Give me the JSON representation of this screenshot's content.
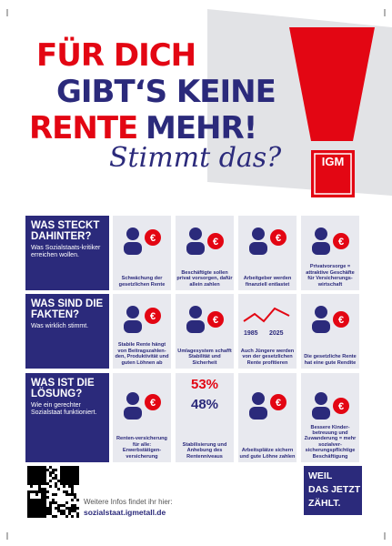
{
  "headline": {
    "line1": "FÜR DICH",
    "line2": "GIBT‘S KEINE",
    "line3a": "RENTE",
    "line3b": "MEHR!",
    "script": "Stimmt das?"
  },
  "logo": "IGM",
  "sections": [
    {
      "title": "WAS STECKT DAHINTER?",
      "subtitle": "Was Sozialstaats-kritiker erreichen wollen.",
      "items": [
        {
          "caption": "Schwächung der gesetzlichen Rente"
        },
        {
          "caption": "Beschäftigte sollen privat vorsorgen, dafür allein zahlen"
        },
        {
          "caption": "Arbeitgeber werden finanziell entlastet"
        },
        {
          "caption": "Privatvorsorge = attraktive Geschäfte für Versicherungs-wirtschaft"
        }
      ]
    },
    {
      "title": "WAS SIND DIE FAKTEN?",
      "subtitle": "Was wirklich stimmt.",
      "items": [
        {
          "caption": "Stabile Rente hängt von Beitragszahlen-den, Produktivität und guten Löhnen ab"
        },
        {
          "caption": "Umlagesystem schafft Stabilität und Sicherheit"
        },
        {
          "caption": "Auch Jüngere werden von der gesetzlichen Rente profitieren",
          "figures": [
            "1985",
            "2025"
          ]
        },
        {
          "caption": "Die gesetzliche Rente hat eine gute Rendite"
        }
      ]
    },
    {
      "title": "WAS IST DIE LÖSUNG?",
      "subtitle": "Wie ein gerechter Sozialstaat funktioniert.",
      "items": [
        {
          "caption": "Renten-versicherung für alle: Erwerbstätigen-versicherung"
        },
        {
          "caption": "Stabilisierung und Anhebung des Rentenniveaus",
          "figures": [
            "53%",
            "48%"
          ]
        },
        {
          "caption": "Arbeitsplätze sichern und gute Löhne zahlen"
        },
        {
          "caption": "Bessere Kinder-betreuung und Zuwanderung = mehr sozialver-sicherungspflichtige Beschäftigung"
        }
      ]
    }
  ],
  "footer": {
    "info": "Weitere Infos findet ihr hier:",
    "url": "sozialstaat.igmetall.de",
    "badge": [
      "WEIL",
      "DAS JETZT",
      "ZÄHLT."
    ]
  }
}
